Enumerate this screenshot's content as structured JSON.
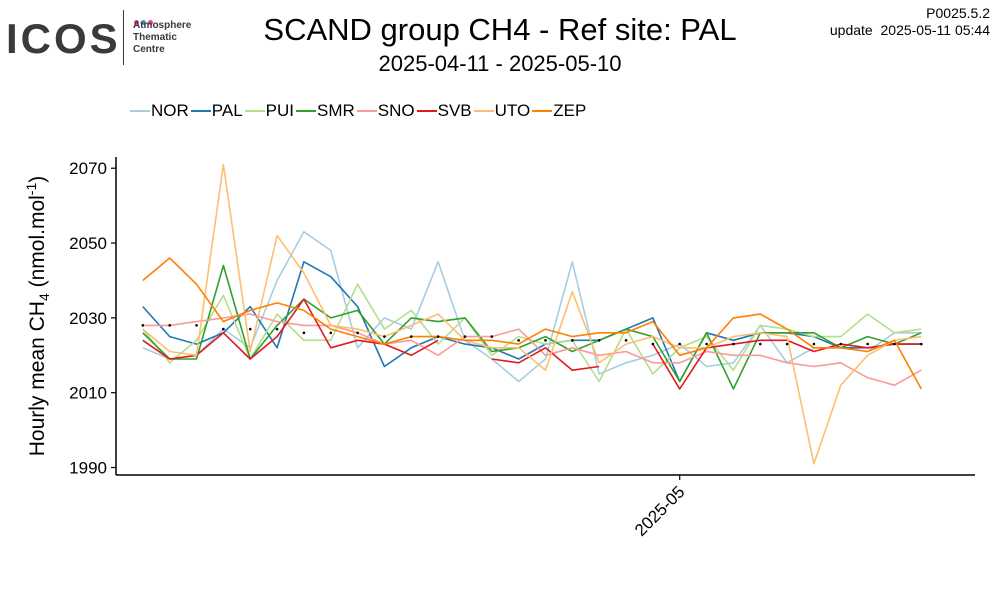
{
  "logo": {
    "word": "ICOS",
    "lines": [
      "Atmosphere",
      "Thematic",
      "Centre"
    ],
    "dot_colors": [
      "#e84a8a",
      "#3aa0d8",
      "#e84a8a"
    ]
  },
  "header": {
    "version": "P0025.5.2",
    "update": "update  2025-05-11 05:44"
  },
  "chart_data": {
    "type": "line",
    "title": "SCAND group CH4 - Ref site: PAL",
    "subtitle": "2025-04-11 - 2025-05-10",
    "ylabel_prefix": "Hourly mean  CH",
    "ylabel_sub": "4",
    "ylabel_unit_a": " (nmol.mol",
    "ylabel_sup": "-1",
    "ylabel_unit_b": ")",
    "xlabel": "",
    "xtick_label": "2025-05",
    "xtick_day": 20,
    "xlim": [
      -1,
      31
    ],
    "ylim": [
      1988,
      2073
    ],
    "yticks": [
      1990,
      2010,
      2030,
      2050,
      2070
    ],
    "legend_position": "top-left",
    "grid": false,
    "x": [
      0,
      1,
      2,
      3,
      4,
      5,
      6,
      7,
      8,
      9,
      10,
      11,
      12,
      13,
      14,
      15,
      16,
      17,
      18,
      19,
      20,
      21,
      22,
      23,
      24,
      25,
      26,
      27,
      28,
      29
    ],
    "reference_points": [
      2028,
      2028,
      2028,
      2027,
      2027,
      2027,
      2026,
      2026,
      2026,
      2025,
      2025,
      2025,
      2025,
      2025,
      2024,
      2024,
      2024,
      2024,
      2024,
      2023,
      2023,
      2023,
      2023,
      2023,
      2023,
      2023,
      2023,
      2023,
      2023,
      2023
    ],
    "series": [
      {
        "name": "NOR",
        "color": "#a6cee3",
        "values": [
          2022,
          2019,
          2020,
          2027,
          2022,
          2040,
          2053,
          2048,
          2022,
          2030,
          2027,
          2045,
          2024,
          2019,
          2013,
          2019,
          2045,
          2015,
          2018,
          2020,
          2023,
          2017,
          2018,
          2028,
          2018,
          2022,
          2022,
          2021,
          2026,
          2026
        ]
      },
      {
        "name": "PAL",
        "color": "#1f78b4",
        "values": [
          2033,
          2025,
          2023,
          2026,
          2033,
          2022,
          2045,
          2041,
          2033,
          2017,
          2022,
          2025,
          2023,
          2022,
          2019,
          2023,
          2024,
          2024,
          2027,
          2030,
          2013,
          2026,
          2024,
          2026,
          2026,
          2025,
          2022,
          2022,
          2023,
          2023
        ]
      },
      {
        "name": "PUI",
        "color": "#b2df8a",
        "values": [
          2027,
          2018,
          2024,
          2036,
          2019,
          2031,
          2024,
          2024,
          2039,
          2027,
          2032,
          2023,
          2030,
          2020,
          2025,
          2023,
          2024,
          2013,
          2027,
          2015,
          2022,
          2025,
          2016,
          2028,
          2027,
          2025,
          2025,
          2031,
          2026,
          2027
        ]
      },
      {
        "name": "SMR",
        "color": "#33a02c",
        "values": [
          2026,
          2019,
          2019,
          2044,
          2019,
          2028,
          2035,
          2030,
          2032,
          2023,
          2030,
          2029,
          2030,
          2021,
          2022,
          2025,
          2021,
          2024,
          2027,
          2025,
          2013,
          2026,
          2011,
          2026,
          2026,
          2026,
          2022,
          2025,
          2023,
          2026
        ]
      },
      {
        "name": "SNO",
        "color": "#fb9a99",
        "values": [
          2028,
          2028,
          2029,
          2030,
          2031,
          2029,
          2028,
          2028,
          2026,
          2023,
          2024,
          2020,
          2025,
          2025,
          2027,
          2020,
          2022,
          2020,
          2021,
          2018,
          2018,
          2021,
          2020,
          2020,
          2018,
          2017,
          2018,
          2014,
          2012,
          2016
        ]
      },
      {
        "name": "SVB",
        "color": "#e31a1c",
        "values": [
          2024,
          2019,
          2020,
          2026,
          2019,
          2025,
          2035,
          2022,
          2024,
          2023,
          2020,
          2024,
          null,
          2019,
          2018,
          2022,
          2016,
          2017,
          null,
          2023,
          2011,
          2022,
          2023,
          2024,
          2024,
          2021,
          2023,
          2022,
          2023,
          2023
        ]
      },
      {
        "name": "UTO",
        "color": "#fdbf6f",
        "values": [
          2027,
          2021,
          2020,
          2071,
          2021,
          2052,
          2042,
          2028,
          2027,
          2025,
          2028,
          2031,
          2024,
          2022,
          2022,
          2016,
          2037,
          2018,
          2023,
          2025,
          2022,
          2022,
          2025,
          2026,
          2025,
          1991,
          2012,
          2020,
          2024,
          2025
        ]
      },
      {
        "name": "ZEP",
        "color": "#ff7f00",
        "values": [
          2040,
          2046,
          2039,
          2029,
          2032,
          2034,
          2032,
          2027,
          2025,
          2023,
          2025,
          2025,
          2024,
          2024,
          2023,
          2027,
          2025,
          2026,
          2026,
          2029,
          2020,
          2022,
          2030,
          2031,
          2027,
          2022,
          2022,
          2021,
          2024,
          2011
        ]
      }
    ]
  }
}
